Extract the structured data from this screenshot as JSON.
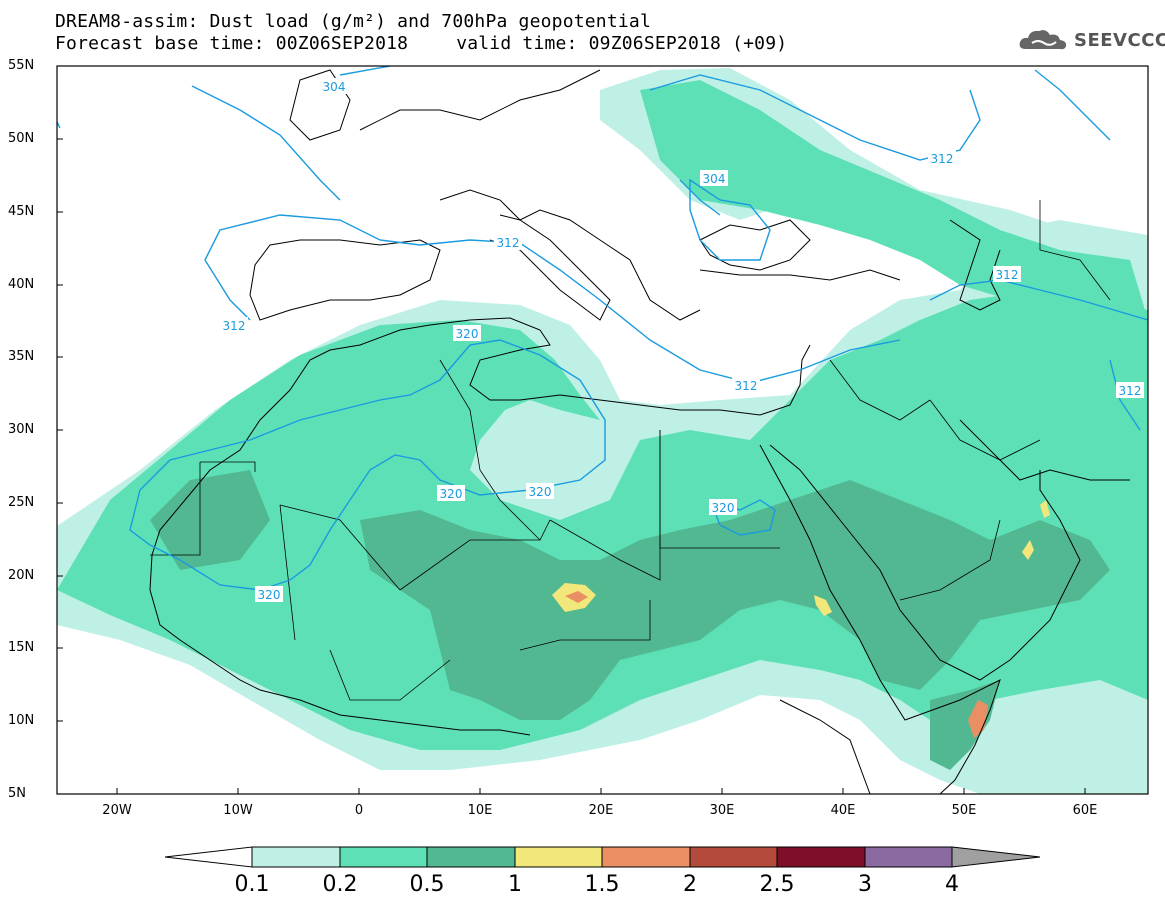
{
  "header": {
    "title_line1": "DREAM8-assim: Dust load (g/m²) and 700hPa geopotential",
    "base_time": "Forecast base time: 00Z06SEP2018",
    "valid_time": "valid time: 09Z06SEP2018 (+09)",
    "logo_text": "SEEVCCC"
  },
  "axes": {
    "lat_labels": [
      "55N",
      "50N",
      "45N",
      "40N",
      "35N",
      "30N",
      "25N",
      "20N",
      "15N",
      "10N",
      "5N"
    ],
    "lon_labels": [
      "20W",
      "10W",
      "0",
      "10E",
      "20E",
      "30E",
      "40E",
      "50E",
      "60E"
    ]
  },
  "contour_labels": {
    "c304a": "304",
    "c304b": "304",
    "c312a": "312",
    "c312b": "312",
    "c312c": "312",
    "c312d": "312",
    "c312e": "312",
    "c320a": "320",
    "c320b": "320",
    "c320c": "320",
    "c320d": "320",
    "c320e": "320"
  },
  "colorbar": {
    "labels": [
      "0.1",
      "0.2",
      "0.5",
      "1",
      "1.5",
      "2",
      "2.5",
      "3",
      "4"
    ],
    "colors": [
      "#ffffff",
      "#bff0e6",
      "#5ee0b7",
      "#52b891",
      "#f1e77a",
      "#ea8f64",
      "#b44a3b",
      "#7d0f28",
      "#8a6aa0",
      "#a0a0a0"
    ]
  },
  "styling": {
    "land_border_color": "#000000",
    "geopotential_contour_color": "#1a9be0"
  }
}
